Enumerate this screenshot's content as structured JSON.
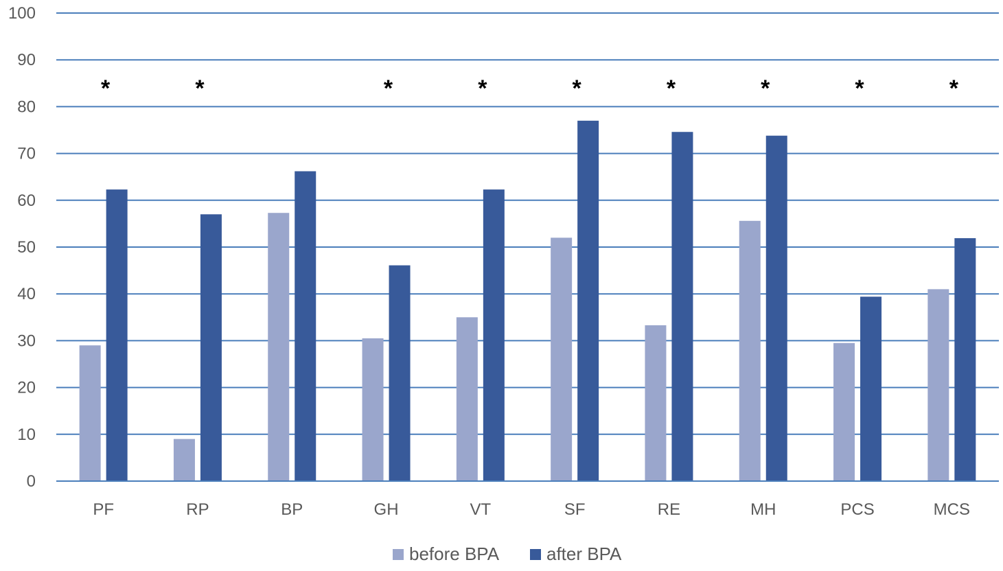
{
  "chart_data": {
    "type": "bar",
    "title": "",
    "xlabel": "",
    "ylabel": "",
    "ylim": [
      0,
      100
    ],
    "yticks": [
      0,
      10,
      20,
      30,
      40,
      50,
      60,
      70,
      80,
      90,
      100
    ],
    "grid": true,
    "legend_position": "bottom",
    "categories": [
      "PF",
      "RP",
      "BP",
      "GH",
      "VT",
      "SF",
      "RE",
      "MH",
      "PCS",
      "MCS"
    ],
    "series": [
      {
        "name": "before BPA",
        "color": "#9aa6cc",
        "values": [
          29,
          9,
          57.3,
          30.5,
          35,
          52,
          33.3,
          55.6,
          29.5,
          41
        ]
      },
      {
        "name": "after BPA",
        "color": "#385a9a",
        "values": [
          62.3,
          57,
          66.2,
          46.1,
          62.3,
          77,
          74.6,
          73.8,
          39.4,
          51.9
        ]
      }
    ],
    "annotations": [
      {
        "category": "PF",
        "text": "*"
      },
      {
        "category": "RP",
        "text": "*"
      },
      {
        "category": "GH",
        "text": "*"
      },
      {
        "category": "VT",
        "text": "*"
      },
      {
        "category": "SF",
        "text": "*"
      },
      {
        "category": "RE",
        "text": "*"
      },
      {
        "category": "MH",
        "text": "*"
      },
      {
        "category": "PCS",
        "text": "*"
      },
      {
        "category": "MCS",
        "text": "*"
      }
    ]
  }
}
